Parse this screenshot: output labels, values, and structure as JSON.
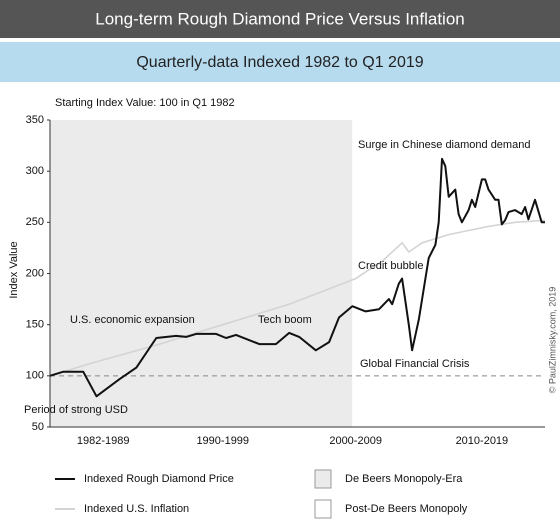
{
  "chart_data": {
    "type": "line",
    "title": "Long-term Rough Diamond Price Versus Inflation",
    "subtitle": "Quarterly-data Indexed 1982 to Q1 2019",
    "note": "Starting Index Value: 100 in Q1 1982",
    "y_label": "Index Value",
    "credit": "© PaulZimnisky.com, 2019",
    "xlim": [
      1982,
      2019.25
    ],
    "xticks": [
      {
        "value": 1986,
        "label": "1982-1989"
      },
      {
        "value": 1995,
        "label": "1990-1999"
      },
      {
        "value": 2005,
        "label": "2000-2009"
      },
      {
        "value": 2014.5,
        "label": "2010-2019"
      }
    ],
    "ylim": [
      50,
      350
    ],
    "yticks": [
      50,
      100,
      150,
      200,
      250,
      300,
      350
    ],
    "reference_line": 100,
    "regions": [
      {
        "name": "De Beers Monopoly-Era",
        "color": "#ebebeb",
        "x": [
          1982,
          2004.75
        ]
      },
      {
        "name": "Post-De Beers Monopoly",
        "color": "#ffffff",
        "x": [
          2004.75,
          2019.25
        ]
      }
    ],
    "series": [
      {
        "name": "Indexed Rough Diamond Price",
        "color": "#111111",
        "x": [
          1982,
          1983,
          1984.5,
          1985.5,
          1987.25,
          1988.5,
          1990,
          1991.5,
          1992.25,
          1993,
          1994.5,
          1995.25,
          1996,
          1997.75,
          1999,
          2000,
          2000.75,
          2002,
          2003,
          2003.75,
          2004.75,
          2005.75,
          2006.75,
          2007.5,
          2007.75,
          2008.25,
          2008.5,
          2009,
          2009.25,
          2009.75,
          2010.5,
          2011,
          2011.25,
          2011.5,
          2011.75,
          2012,
          2012.5,
          2012.75,
          2013,
          2013.5,
          2013.75,
          2014,
          2014.5,
          2014.75,
          2015,
          2015.5,
          2015.75,
          2016,
          2016.25,
          2016.5,
          2017,
          2017.5,
          2017.75,
          2018,
          2018.5,
          2019,
          2019.25
        ],
        "values": [
          100,
          104,
          104,
          80,
          97,
          108,
          137,
          139,
          138,
          141,
          141,
          137,
          140,
          131,
          131,
          142,
          138,
          125,
          133,
          157,
          168,
          163,
          165,
          175,
          170,
          190,
          195,
          150,
          125,
          155,
          215,
          228,
          250,
          312,
          305,
          275,
          282,
          258,
          250,
          262,
          272,
          265,
          292,
          292,
          282,
          272,
          272,
          248,
          252,
          260,
          262,
          258,
          265,
          253,
          272,
          250,
          250
        ]
      },
      {
        "name": "Indexed U.S. Inflation",
        "color": "#d4d4d4",
        "x": [
          1982,
          1985,
          1990,
          1995,
          2000,
          2005,
          2007,
          2008.5,
          2009,
          2010,
          2012,
          2015,
          2017,
          2019.25
        ],
        "values": [
          100,
          112,
          130,
          150,
          170,
          195,
          212,
          230,
          221,
          230,
          238,
          246,
          250,
          252
        ]
      }
    ],
    "annotations": [
      "Surge in Chinese diamond demand",
      "Credit bubble",
      "U.S. economic expansion",
      "Tech boom",
      "Global Financial Crisis",
      "Period of strong USD"
    ]
  }
}
